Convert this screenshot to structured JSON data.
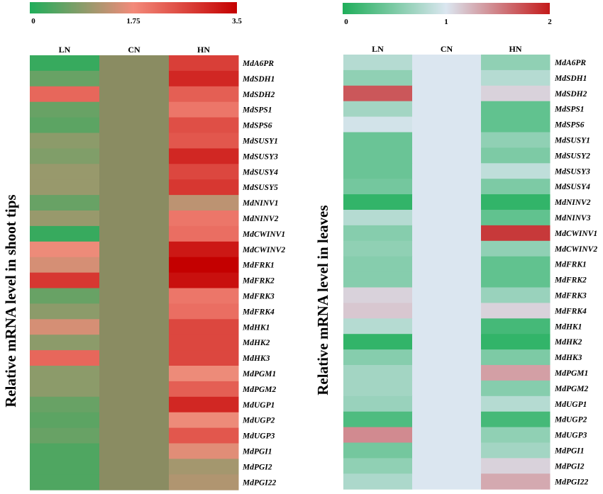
{
  "chart_data": [
    {
      "type": "heatmap",
      "ylabel": "Relative mRNA level in shoot tips",
      "columns": [
        "LN",
        "CN",
        "HN"
      ],
      "rows": [
        "MdA6PR",
        "MdSDH1",
        "MdSDH2",
        "MdSPS1",
        "MdSPS6",
        "MdSUSY1",
        "MdSUSY3",
        "MdSUSY4",
        "MdSUSY5",
        "MdNINV1",
        "MdNINV2",
        "MdCWINV1",
        "MdCWINV2",
        "MdFRK1",
        "MdFRK2",
        "MdFRK3",
        "MdFRK4",
        "MdHK1",
        "MdHK2",
        "MdHK3",
        "MdPGM1",
        "MdPGM2",
        "MdUGP1",
        "MdUGP2",
        "MdUGP3",
        "MdPGI1",
        "MdPGI2",
        "MdPGI22"
      ],
      "values": [
        [
          0.2,
          1,
          2.7
        ],
        [
          0.6,
          1,
          3.0
        ],
        [
          2.2,
          1,
          2.3
        ],
        [
          0.6,
          1,
          2.0
        ],
        [
          0.5,
          1,
          2.5
        ],
        [
          0.9,
          1,
          2.4
        ],
        [
          0.8,
          1,
          3.0
        ],
        [
          1.0,
          1,
          2.6
        ],
        [
          1.0,
          1,
          2.8
        ],
        [
          0.6,
          1,
          1.3
        ],
        [
          1.0,
          1,
          2.0
        ],
        [
          0.2,
          1,
          2.1
        ],
        [
          1.7,
          1,
          3.2
        ],
        [
          1.5,
          1,
          3.5
        ],
        [
          2.8,
          1,
          3.3
        ],
        [
          0.6,
          1,
          2.0
        ],
        [
          0.9,
          1,
          2.1
        ],
        [
          1.5,
          1,
          2.6
        ],
        [
          0.9,
          1,
          2.6
        ],
        [
          2.2,
          1,
          2.6
        ],
        [
          0.9,
          1,
          1.7
        ],
        [
          0.9,
          1,
          2.3
        ],
        [
          0.6,
          1,
          3.0
        ],
        [
          0.5,
          1,
          1.7
        ],
        [
          0.6,
          1,
          2.4
        ],
        [
          0.4,
          1,
          1.6
        ],
        [
          0.4,
          1,
          1.1
        ],
        [
          0.4,
          1,
          1.2
        ]
      ],
      "colorbar": {
        "min": 0,
        "mid": 1.75,
        "max": 3.5,
        "ticks": [
          "0",
          "1.75",
          "3.5"
        ],
        "colors": [
          "#1fae5a",
          "#f38a7a",
          "#c40000"
        ]
      },
      "neutral_color": "#8a8c62"
    },
    {
      "type": "heatmap",
      "ylabel": "Relative mRNA level in leaves",
      "columns": [
        "LN",
        "CN",
        "HN"
      ],
      "rows": [
        "MdA6PR",
        "MdSDH1",
        "MdSDH2",
        "MdSPS1",
        "MdSPS6",
        "MdSUSY1",
        "MdSUSY2",
        "MdSUSY3",
        "MdSUSY4",
        "MdNINV2",
        "MdNINV3",
        "MdCWINV1",
        "MdCWINV2",
        "MdFRK1",
        "MdFRK2",
        "MdFRK3",
        "MdFRK4",
        "MdHK1",
        "MdHK2",
        "MdHK3",
        "MdPGM1",
        "MdPGM2",
        "MdUGP1",
        "MdUGP2",
        "MdUGP3",
        "MdPGI1",
        "MdPGI2",
        "MdPGI22"
      ],
      "values": [
        [
          0.8,
          1,
          0.6
        ],
        [
          0.6,
          1,
          0.8
        ],
        [
          1.7,
          1,
          1.1
        ],
        [
          0.7,
          1,
          0.35
        ],
        [
          0.95,
          1,
          0.35
        ],
        [
          0.4,
          1,
          0.6
        ],
        [
          0.4,
          1,
          0.5
        ],
        [
          0.4,
          1,
          0.85
        ],
        [
          0.45,
          1,
          0.5
        ],
        [
          0.1,
          1,
          0.1
        ],
        [
          0.8,
          1,
          0.35
        ],
        [
          0.55,
          1,
          1.85
        ],
        [
          0.6,
          1,
          0.6
        ],
        [
          0.55,
          1,
          0.35
        ],
        [
          0.55,
          1,
          0.35
        ],
        [
          1.1,
          1,
          0.65
        ],
        [
          1.15,
          1,
          1.1
        ],
        [
          0.8,
          1,
          0.2
        ],
        [
          0.1,
          1,
          0.1
        ],
        [
          0.55,
          1,
          0.5
        ],
        [
          0.7,
          1,
          1.35
        ],
        [
          0.7,
          1,
          0.55
        ],
        [
          0.65,
          1,
          0.8
        ],
        [
          0.25,
          1,
          0.2
        ],
        [
          1.45,
          1,
          0.6
        ],
        [
          0.45,
          1,
          0.7
        ],
        [
          0.6,
          1,
          1.1
        ],
        [
          0.75,
          1,
          1.3
        ]
      ],
      "colorbar": {
        "min": 0,
        "mid": 1,
        "max": 2,
        "ticks": [
          "0",
          "1",
          "2"
        ],
        "colors": [
          "#1fae5a",
          "#dbe6f0",
          "#c41a1a"
        ]
      },
      "neutral_color": "#dbe6f0"
    }
  ]
}
